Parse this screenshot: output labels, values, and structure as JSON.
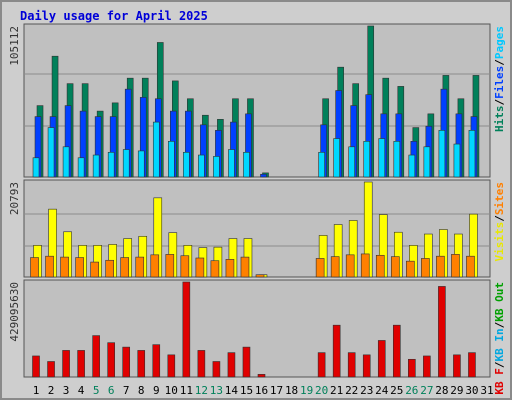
{
  "title": "Daily usage for April 2025",
  "colors": {
    "hits": "#00805a",
    "files": "#0040ff",
    "pages": "#00d8ff",
    "visits": "#ffff00",
    "sites": "#ff8000",
    "kbin": "#00c0ff",
    "kbout": "#00a000",
    "kbf": "#e00000",
    "day_normal": "#000000",
    "day_weekend": "#00805a"
  },
  "panels": {
    "top": {
      "max_label": "105112",
      "legend": [
        {
          "text": "Hits",
          "color": "#00805a"
        },
        {
          "text": "/",
          "color": "#000000"
        },
        {
          "text": "Files",
          "color": "#0040ff"
        },
        {
          "text": "/",
          "color": "#000000"
        },
        {
          "text": "Pages",
          "color": "#00c8ff"
        }
      ]
    },
    "middle": {
      "max_label": "20793",
      "legend": [
        {
          "text": "Visits",
          "color": "#e8e800"
        },
        {
          "text": "/",
          "color": "#000000"
        },
        {
          "text": "Sites",
          "color": "#ff8000"
        }
      ]
    },
    "bottom": {
      "max_label": "429095630",
      "legend": [
        {
          "text": "KB F",
          "color": "#e00000"
        },
        {
          "text": "/",
          "color": "#000000"
        },
        {
          "text": "KB In",
          "color": "#00a8e0"
        },
        {
          "text": "/",
          "color": "#000000"
        },
        {
          "text": "KB Out",
          "color": "#00a000"
        }
      ]
    }
  },
  "chart_data": {
    "type": "bar",
    "categories": [
      "1",
      "2",
      "3",
      "4",
      "5",
      "6",
      "7",
      "8",
      "9",
      "10",
      "11",
      "12",
      "13",
      "14",
      "15",
      "16",
      "17",
      "18",
      "19",
      "20",
      "21",
      "22",
      "23",
      "24",
      "25",
      "26",
      "27",
      "28",
      "29",
      "30",
      "31"
    ],
    "weekend_days": [
      5,
      6,
      12,
      13,
      19,
      20,
      26,
      27
    ],
    "series": [
      {
        "name": "Hits",
        "panel": "top",
        "values": [
          52000,
          88000,
          68000,
          68000,
          48000,
          54000,
          72000,
          72000,
          98000,
          70000,
          57000,
          45000,
          42000,
          57000,
          57000,
          3000,
          0,
          0,
          0,
          57000,
          80000,
          68000,
          110000,
          72000,
          66000,
          36000,
          46000,
          74000,
          57000,
          74000,
          0
        ]
      },
      {
        "name": "Files",
        "panel": "top",
        "values": [
          44000,
          44000,
          52000,
          48000,
          44000,
          44000,
          64000,
          58000,
          57000,
          48000,
          48000,
          38000,
          34000,
          40000,
          46000,
          2000,
          0,
          0,
          0,
          38000,
          63000,
          52000,
          60000,
          46000,
          46000,
          26000,
          37000,
          64000,
          46000,
          44000,
          0
        ]
      },
      {
        "name": "Pages",
        "panel": "top",
        "values": [
          14000,
          36000,
          22000,
          14000,
          16000,
          18000,
          20000,
          19000,
          40000,
          26000,
          18000,
          16000,
          15000,
          20000,
          18000,
          0,
          0,
          0,
          0,
          18000,
          28000,
          22000,
          26000,
          28000,
          26000,
          16000,
          22000,
          34000,
          24000,
          34000,
          0
        ]
      },
      {
        "name": "Visits",
        "panel": "middle",
        "values": [
          7000,
          15000,
          10000,
          7000,
          7000,
          7200,
          8500,
          9000,
          17500,
          9800,
          7000,
          6500,
          6600,
          8500,
          8500,
          500,
          0,
          0,
          0,
          9200,
          11600,
          12500,
          21000,
          13800,
          9900,
          7000,
          9500,
          10500,
          9500,
          13900,
          0
        ]
      },
      {
        "name": "Sites",
        "panel": "middle",
        "values": [
          4300,
          4600,
          4400,
          4300,
          3300,
          3700,
          4300,
          4400,
          4900,
          5000,
          4700,
          4200,
          3600,
          3900,
          4400,
          500,
          0,
          0,
          0,
          4100,
          4500,
          4900,
          5100,
          4800,
          4500,
          3500,
          4100,
          4600,
          5000,
          4600,
          0
        ]
      },
      {
        "name": "KB F",
        "panel": "bottom",
        "values": [
          95000000,
          70000000,
          120000000,
          120000000,
          187000000,
          155000000,
          135000000,
          120000000,
          146000000,
          100000000,
          429000000,
          120000000,
          70000000,
          110000000,
          135000000,
          12000000,
          0,
          0,
          0,
          110000000,
          234000000,
          110000000,
          100000000,
          165000000,
          234000000,
          80000000,
          95000000,
          409000000,
          100000000,
          110000000,
          0
        ]
      }
    ]
  }
}
